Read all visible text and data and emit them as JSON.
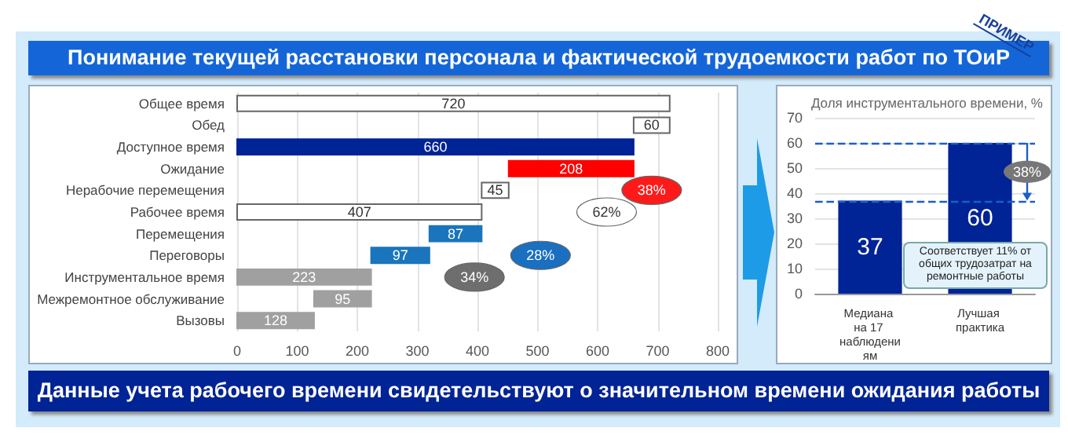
{
  "chart_data": [
    {
      "type": "bar",
      "orientation": "horizontal",
      "title": "Понимание текущей расстановки персонала и фактической трудоемкости работ по ТОиР",
      "categories": [
        "Общее время",
        "Обед",
        "Доступное время",
        "Ожидание",
        "Нерабочие перемещения",
        "Рабочее время",
        "Перемещения",
        "Переговоры",
        "Инструментальное время",
        "Межремонтное обслуживание",
        "Вызовы"
      ],
      "values": [
        720,
        60,
        660,
        208,
        45,
        407,
        87,
        97,
        223,
        95,
        128
      ],
      "base": [
        0,
        660,
        0,
        452,
        407,
        0,
        320,
        223,
        0,
        128,
        0
      ],
      "colors": [
        "#ffffff",
        "#ffffff",
        "#002395",
        "#ff0000",
        "#ffffff",
        "#ffffff",
        "#1a75bc",
        "#1a75bc",
        "#a0a0a0",
        "#a0a0a0",
        "#a0a0a0"
      ],
      "data_labels": true,
      "xlim": [
        0,
        800
      ],
      "xticks": [
        0,
        100,
        200,
        300,
        400,
        500,
        600,
        700,
        800
      ],
      "grid": "x",
      "annotations": [
        {
          "text": "38%",
          "x": 690,
          "y": "Нерабочие перемещения"
        },
        {
          "text": "62%",
          "x": 615,
          "y": "Рабочее время"
        },
        {
          "text": "28%",
          "x": 505,
          "y": "Переговоры"
        },
        {
          "text": "34%",
          "x": 395,
          "y": "Инструментальное время"
        },
        "Данные учета рабочего времени свидетельствуют о значительном времени ожидания работы",
        "ПРИМЕР"
      ]
    },
    {
      "type": "bar",
      "title": "Доля инструментального времени, %",
      "categories": [
        "Медиана на 17 наблюдениям",
        "Лучшая практика"
      ],
      "values": [
        37,
        60
      ],
      "color": "#002395",
      "data_labels": true,
      "ylim": [
        0,
        70
      ],
      "yticks": [
        0,
        10,
        20,
        30,
        40,
        50,
        60,
        70
      ],
      "grid": "y",
      "ref_lines": [
        {
          "axis": "y",
          "value": 60,
          "color": "#1a5fc8",
          "line_style": "dashed"
        },
        {
          "axis": "y",
          "value": 37,
          "color": "#1a5fc8",
          "line_style": "dashed"
        }
      ],
      "annotations": [
        "38%",
        "Соответствует 11% от общих трудозатрат на ремонтные работы"
      ]
    }
  ]
}
